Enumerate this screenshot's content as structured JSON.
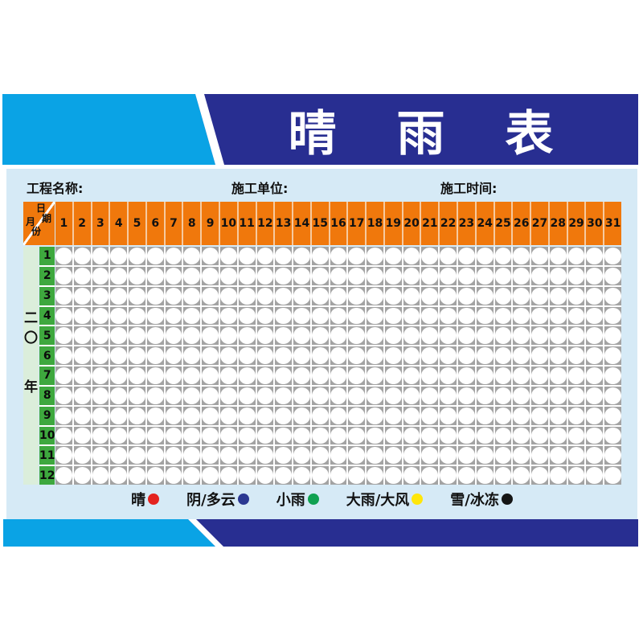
{
  "title": "晴 雨 表",
  "form": {
    "project_label": "工程名称:",
    "unit_label": "施工单位:",
    "time_label": "施工时间:"
  },
  "table": {
    "corner": {
      "day_char_1": "日",
      "day_char_2": "期",
      "month_char_1": "月",
      "month_char_2": "份"
    },
    "days": [
      "1",
      "2",
      "3",
      "4",
      "5",
      "6",
      "7",
      "8",
      "9",
      "10",
      "11",
      "12",
      "13",
      "14",
      "15",
      "16",
      "17",
      "18",
      "19",
      "20",
      "21",
      "22",
      "23",
      "24",
      "25",
      "26",
      "27",
      "28",
      "29",
      "30",
      "31"
    ],
    "months": [
      "1",
      "2",
      "3",
      "4",
      "5",
      "6",
      "7",
      "8",
      "9",
      "10",
      "11",
      "12"
    ],
    "year": {
      "char_1": "二",
      "char_2": "〇",
      "char_3": "年"
    },
    "rows": 12,
    "cols": 31
  },
  "legend": {
    "items": [
      {
        "label": "晴",
        "color": "#e4231f"
      },
      {
        "label": "阴/多云",
        "color": "#2b3892"
      },
      {
        "label": "小雨",
        "color": "#10a151"
      },
      {
        "label": "大雨/大风",
        "color": "#ffe60a"
      },
      {
        "label": "雪/冰冻",
        "color": "#151515"
      }
    ]
  },
  "colors": {
    "dark_blue": "#282e91",
    "cyan": "#0aa3e5",
    "panel_blue": "#d6eaf6",
    "orange": "#f0780c",
    "month_green": "#3ea83e",
    "pale_green": "#dbeedb",
    "cell_gray": "#a3a3a3"
  }
}
